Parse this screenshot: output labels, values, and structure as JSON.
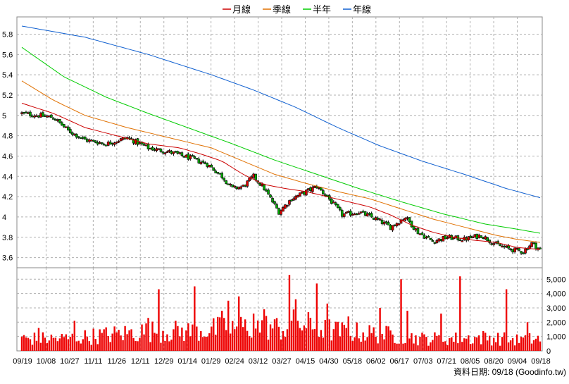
{
  "chart_data": {
    "type": "candlestick",
    "legend": {
      "placement": "top-center",
      "items": [
        {
          "label": "月線",
          "color": "#cc0000"
        },
        {
          "label": "季線",
          "color": "#e07000"
        },
        {
          "label": "半年",
          "color": "#00cc00"
        },
        {
          "label": "年線",
          "color": "#1060d0"
        }
      ]
    },
    "price_axis": {
      "ylim": [
        3.5,
        5.97
      ],
      "ticks": [
        "3.6",
        "3.8",
        "4",
        "4.2",
        "4.4",
        "4.6",
        "4.8",
        "5",
        "5.2",
        "5.4",
        "5.6",
        "5.8"
      ],
      "side": "left",
      "grid": true
    },
    "volume_axis": {
      "ylim": [
        0,
        5800
      ],
      "ticks": [
        "0",
        "1,000",
        "2,000",
        "3,000",
        "4,000",
        "5,000"
      ],
      "side": "right",
      "grid": true
    },
    "x_ticks": [
      "09/19",
      "10/08",
      "10/27",
      "11/11",
      "11/26",
      "12/11",
      "12/29",
      "01/14",
      "01/29",
      "02/24",
      "03/12",
      "03/27",
      "04/15",
      "04/30",
      "05/18",
      "06/02",
      "06/17",
      "07/03",
      "07/21",
      "08/05",
      "08/20",
      "09/04",
      "09/18"
    ],
    "n_sessions": 247,
    "ma_lines": {
      "月線": [
        [
          0,
          5.12
        ],
        [
          15,
          5.02
        ],
        [
          30,
          4.88
        ],
        [
          45,
          4.8
        ],
        [
          60,
          4.72
        ],
        [
          75,
          4.68
        ],
        [
          85,
          4.62
        ],
        [
          95,
          4.55
        ],
        [
          105,
          4.42
        ],
        [
          115,
          4.32
        ],
        [
          125,
          4.28
        ],
        [
          135,
          4.25
        ],
        [
          145,
          4.2
        ],
        [
          155,
          4.15
        ],
        [
          165,
          4.1
        ],
        [
          175,
          4.02
        ],
        [
          185,
          3.92
        ],
        [
          195,
          3.85
        ],
        [
          205,
          3.8
        ],
        [
          215,
          3.77
        ],
        [
          225,
          3.75
        ],
        [
          235,
          3.7
        ],
        [
          246,
          3.68
        ]
      ],
      "季線": [
        [
          0,
          5.34
        ],
        [
          15,
          5.15
        ],
        [
          30,
          5.0
        ],
        [
          50,
          4.88
        ],
        [
          70,
          4.78
        ],
        [
          90,
          4.68
        ],
        [
          105,
          4.55
        ],
        [
          120,
          4.42
        ],
        [
          135,
          4.33
        ],
        [
          150,
          4.25
        ],
        [
          165,
          4.18
        ],
        [
          180,
          4.08
        ],
        [
          195,
          3.98
        ],
        [
          210,
          3.9
        ],
        [
          225,
          3.82
        ],
        [
          235,
          3.78
        ],
        [
          246,
          3.75
        ]
      ],
      "半年": [
        [
          0,
          5.67
        ],
        [
          20,
          5.38
        ],
        [
          40,
          5.18
        ],
        [
          60,
          5.02
        ],
        [
          80,
          4.87
        ],
        [
          100,
          4.72
        ],
        [
          120,
          4.56
        ],
        [
          140,
          4.42
        ],
        [
          160,
          4.28
        ],
        [
          180,
          4.15
        ],
        [
          200,
          4.03
        ],
        [
          220,
          3.93
        ],
        [
          235,
          3.88
        ],
        [
          246,
          3.84
        ]
      ],
      "年線": [
        [
          0,
          5.88
        ],
        [
          30,
          5.77
        ],
        [
          60,
          5.6
        ],
        [
          90,
          5.4
        ],
        [
          110,
          5.25
        ],
        [
          130,
          5.08
        ],
        [
          150,
          4.88
        ],
        [
          170,
          4.7
        ],
        [
          190,
          4.55
        ],
        [
          210,
          4.42
        ],
        [
          230,
          4.28
        ],
        [
          246,
          4.19
        ]
      ]
    },
    "price_path": [
      [
        0,
        5.02
      ],
      [
        8,
        5.0
      ],
      [
        15,
        4.98
      ],
      [
        22,
        4.85
      ],
      [
        30,
        4.76
      ],
      [
        40,
        4.72
      ],
      [
        50,
        4.78
      ],
      [
        60,
        4.68
      ],
      [
        70,
        4.64
      ],
      [
        80,
        4.58
      ],
      [
        88,
        4.52
      ],
      [
        95,
        4.4
      ],
      [
        100,
        4.28
      ],
      [
        105,
        4.3
      ],
      [
        110,
        4.4
      ],
      [
        115,
        4.28
      ],
      [
        122,
        4.05
      ],
      [
        128,
        4.18
      ],
      [
        135,
        4.25
      ],
      [
        140,
        4.3
      ],
      [
        145,
        4.2
      ],
      [
        152,
        4.02
      ],
      [
        160,
        4.05
      ],
      [
        168,
        3.98
      ],
      [
        175,
        3.9
      ],
      [
        182,
        4.0
      ],
      [
        188,
        3.85
      ],
      [
        195,
        3.76
      ],
      [
        202,
        3.8
      ],
      [
        210,
        3.78
      ],
      [
        218,
        3.82
      ],
      [
        225,
        3.73
      ],
      [
        232,
        3.68
      ],
      [
        238,
        3.66
      ],
      [
        242,
        3.74
      ],
      [
        246,
        3.68
      ]
    ],
    "volume_profile": [
      [
        0,
        1000
      ],
      [
        20,
        1000
      ],
      [
        40,
        1300
      ],
      [
        60,
        1600
      ],
      [
        80,
        1600
      ],
      [
        100,
        1900
      ],
      [
        115,
        2000
      ],
      [
        125,
        1800
      ],
      [
        130,
        2300
      ],
      [
        140,
        1900
      ],
      [
        150,
        1600
      ],
      [
        160,
        1500
      ],
      [
        175,
        1300
      ],
      [
        190,
        1000
      ],
      [
        205,
        1000
      ],
      [
        220,
        1100
      ],
      [
        235,
        900
      ],
      [
        246,
        1000
      ]
    ],
    "volume_spikes": [
      [
        8,
        1600
      ],
      [
        25,
        2100
      ],
      [
        60,
        2300
      ],
      [
        65,
        4300
      ],
      [
        82,
        4500
      ],
      [
        95,
        2800
      ],
      [
        98,
        3500
      ],
      [
        103,
        3800
      ],
      [
        110,
        2600
      ],
      [
        115,
        2900
      ],
      [
        127,
        5300
      ],
      [
        130,
        3600
      ],
      [
        140,
        4700
      ],
      [
        145,
        3300
      ],
      [
        155,
        2400
      ],
      [
        170,
        3000
      ],
      [
        180,
        5000
      ],
      [
        183,
        2800
      ],
      [
        199,
        2600
      ],
      [
        208,
        5200
      ],
      [
        230,
        4300
      ],
      [
        240,
        2000
      ]
    ],
    "watermark": "資料日期: 09/18  (Goodinfo.tw)"
  }
}
